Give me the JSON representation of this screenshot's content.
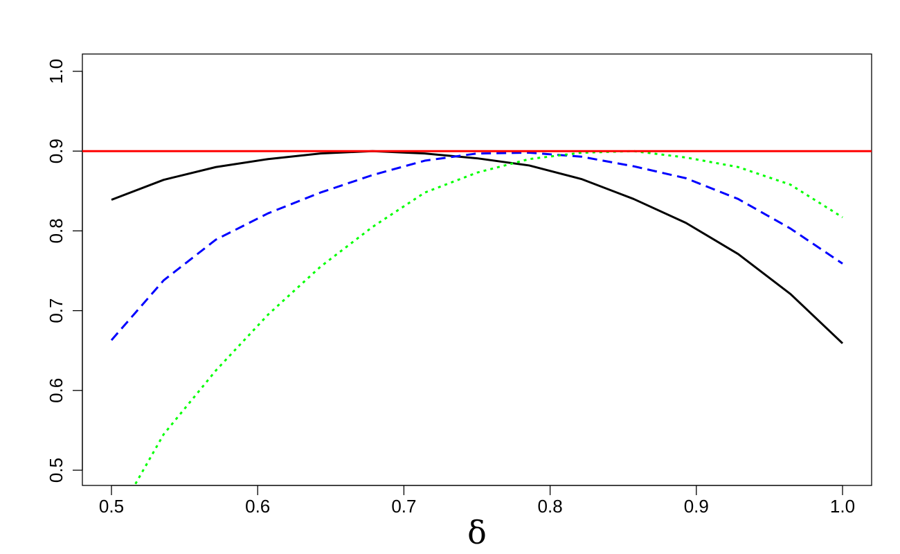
{
  "chart_data": {
    "type": "line",
    "title": "",
    "xlabel": "δ",
    "ylabel": "",
    "xlim": [
      0.5,
      1.0
    ],
    "ylim": [
      0.5,
      1.0
    ],
    "grid": false,
    "x_ticks": [
      "0.5",
      "0.6",
      "0.7",
      "0.8",
      "0.9",
      "1.0"
    ],
    "y_ticks": [
      "0.5",
      "0.6",
      "0.7",
      "0.8",
      "0.9",
      "1.0"
    ],
    "reference_line": {
      "y": 0.9,
      "color": "#ff0000"
    },
    "series": [
      {
        "color": "#000000",
        "dash": "solid",
        "x": [
          0.5,
          0.5357,
          0.5714,
          0.6071,
          0.6429,
          0.6786,
          0.7143,
          0.75,
          0.7857,
          0.8214,
          0.8571,
          0.8929,
          0.9286,
          0.9643,
          1.0
        ],
        "values": [
          0.839,
          0.864,
          0.88,
          0.89,
          0.897,
          0.9,
          0.897,
          0.891,
          0.882,
          0.865,
          0.84,
          0.81,
          0.771,
          0.721,
          0.659
        ]
      },
      {
        "color": "#0000ff",
        "dash": "dashed",
        "x": [
          0.5,
          0.5357,
          0.5714,
          0.6071,
          0.6429,
          0.6786,
          0.7143,
          0.75,
          0.7857,
          0.8214,
          0.8571,
          0.8929,
          0.9286,
          0.9643,
          1.0
        ],
        "values": [
          0.663,
          0.738,
          0.789,
          0.822,
          0.848,
          0.87,
          0.888,
          0.897,
          0.898,
          0.893,
          0.881,
          0.866,
          0.84,
          0.803,
          0.759
        ]
      },
      {
        "color": "#00ff00",
        "dash": "dotted",
        "x": [
          0.5,
          0.5357,
          0.5714,
          0.6071,
          0.6429,
          0.6786,
          0.7143,
          0.75,
          0.7857,
          0.8214,
          0.8571,
          0.8929,
          0.9286,
          0.9643,
          1.0
        ],
        "values": [
          0.43,
          0.545,
          0.625,
          0.695,
          0.755,
          0.805,
          0.848,
          0.873,
          0.89,
          0.898,
          0.9,
          0.892,
          0.88,
          0.858,
          0.817
        ]
      }
    ]
  }
}
